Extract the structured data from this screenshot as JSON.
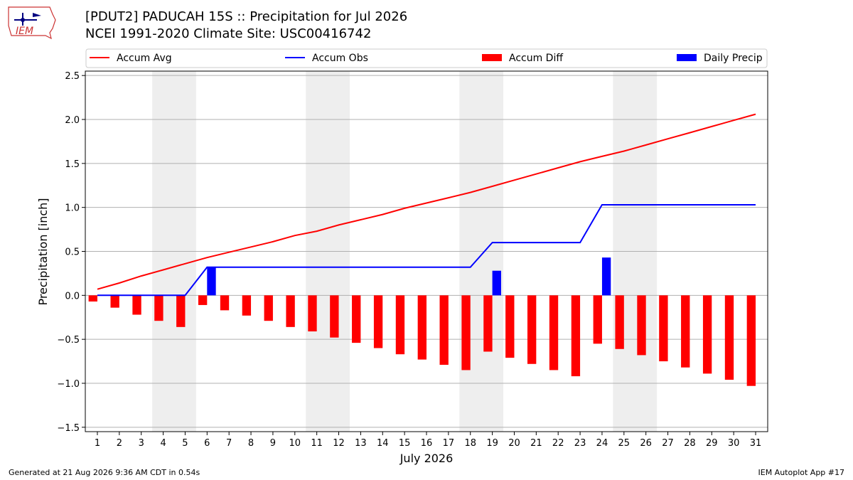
{
  "header": {
    "title_line1": "[PDUT2] PADUCAH 15S :: Precipitation for Jul 2026",
    "title_line2": "NCEI 1991-2020 Climate Site: USC00416742"
  },
  "logo": {
    "text": "IEM",
    "icon": "iem-iowa-logo-icon"
  },
  "footer": {
    "generated": "Generated at 21 Aug 2026 9:36 AM CDT in 0.54s",
    "app": "IEM Autoplot App #17"
  },
  "colors": {
    "avg": "#ff0000",
    "obs": "#0000ff",
    "diff": "#ff0000",
    "daily": "#0000ff",
    "shade": "#eeeeee",
    "grid": "#b0b0b0"
  },
  "chart_data": {
    "type": "bar",
    "xlabel": "July 2026",
    "ylabel": "Precipitation [inch]",
    "ylim": [
      -1.55,
      2.55
    ],
    "yticks": [
      -1.5,
      -1.0,
      -0.5,
      0.0,
      0.5,
      1.0,
      1.5,
      2.0,
      2.5
    ],
    "ytick_labels": [
      "−1.5",
      "−1.0",
      "−0.5",
      "0.0",
      "0.5",
      "1.0",
      "1.5",
      "2.0",
      "2.5"
    ],
    "x": [
      1,
      2,
      3,
      4,
      5,
      6,
      7,
      8,
      9,
      10,
      11,
      12,
      13,
      14,
      15,
      16,
      17,
      18,
      19,
      20,
      21,
      22,
      23,
      24,
      25,
      26,
      27,
      28,
      29,
      30,
      31
    ],
    "weekend_shading": [
      [
        3.5,
        5.5
      ],
      [
        10.5,
        12.5
      ],
      [
        17.5,
        19.5
      ],
      [
        24.5,
        26.5
      ]
    ],
    "grid": true,
    "legend_placement": "top",
    "series": [
      {
        "name": "Accum Avg",
        "kind": "line",
        "values": [
          0.07,
          0.14,
          0.22,
          0.29,
          0.36,
          0.43,
          0.49,
          0.55,
          0.61,
          0.68,
          0.73,
          0.8,
          0.86,
          0.92,
          0.99,
          1.05,
          1.11,
          1.17,
          1.24,
          1.31,
          1.38,
          1.45,
          1.52,
          1.58,
          1.64,
          1.71,
          1.78,
          1.85,
          1.92,
          1.99,
          2.06
        ]
      },
      {
        "name": "Accum Obs",
        "kind": "line",
        "values": [
          0.0,
          0.0,
          0.0,
          0.0,
          0.0,
          0.32,
          0.32,
          0.32,
          0.32,
          0.32,
          0.32,
          0.32,
          0.32,
          0.32,
          0.32,
          0.32,
          0.32,
          0.32,
          0.6,
          0.6,
          0.6,
          0.6,
          0.6,
          1.03,
          1.03,
          1.03,
          1.03,
          1.03,
          1.03,
          1.03,
          1.03
        ]
      },
      {
        "name": "Accum Diff",
        "kind": "bar",
        "values": [
          -0.07,
          -0.14,
          -0.22,
          -0.29,
          -0.36,
          -0.11,
          -0.17,
          -0.23,
          -0.29,
          -0.36,
          -0.41,
          -0.48,
          -0.54,
          -0.6,
          -0.67,
          -0.73,
          -0.79,
          -0.85,
          -0.64,
          -0.71,
          -0.78,
          -0.85,
          -0.92,
          -0.55,
          -0.61,
          -0.68,
          -0.75,
          -0.82,
          -0.89,
          -0.96,
          -1.03
        ]
      },
      {
        "name": "Daily Precip",
        "kind": "bar",
        "values": [
          0,
          0,
          0,
          0,
          0,
          0.32,
          0,
          0,
          0,
          0,
          0,
          0,
          0,
          0,
          0,
          0,
          0,
          0,
          0.28,
          0,
          0,
          0,
          0,
          0.43,
          0,
          0,
          0,
          0,
          0,
          0,
          0
        ]
      }
    ]
  }
}
